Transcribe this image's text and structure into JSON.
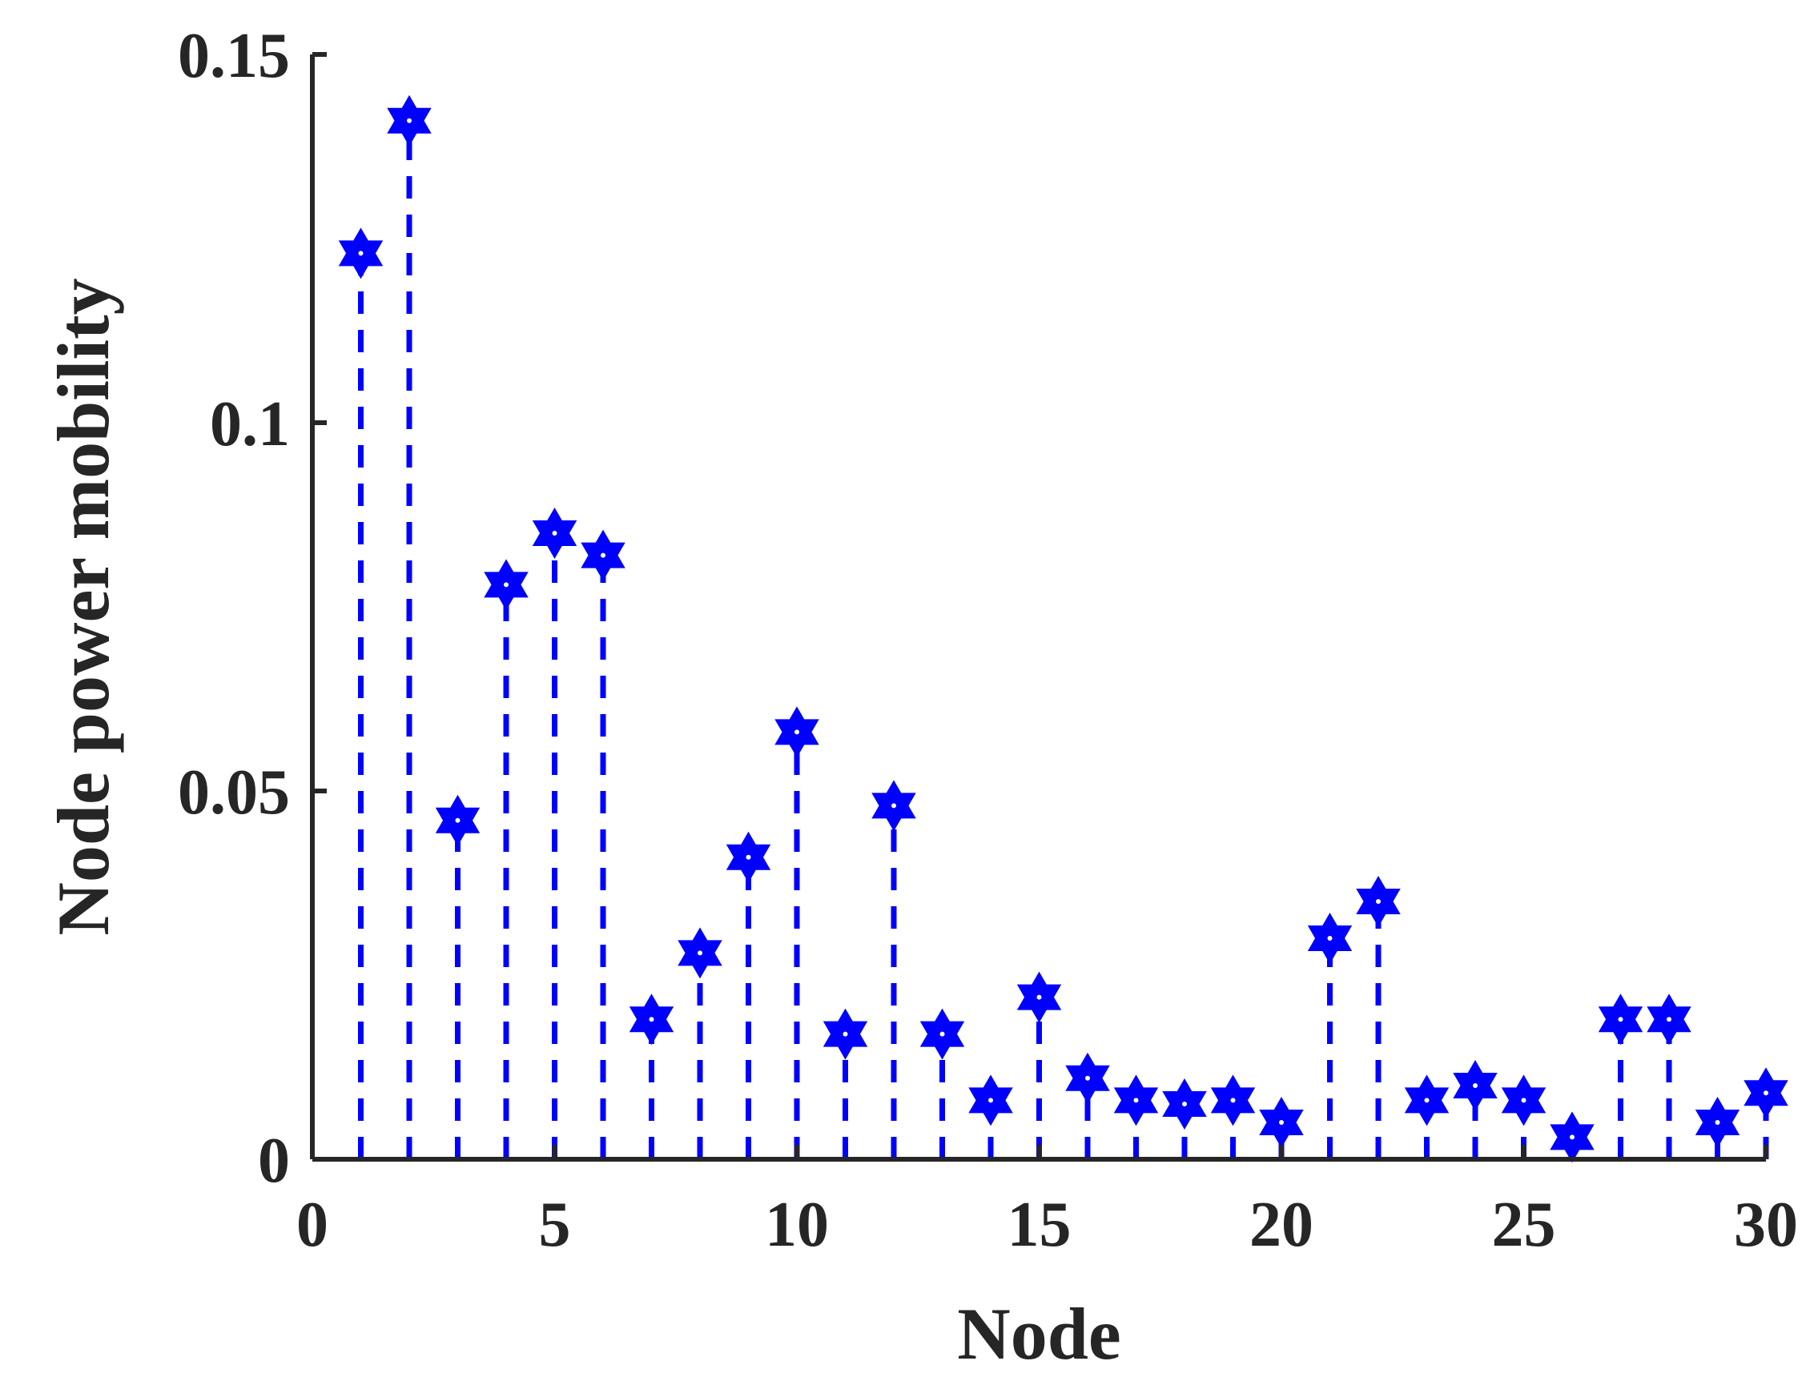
{
  "chart_data": {
    "type": "stem",
    "title": "",
    "xlabel": "Node",
    "ylabel": "Node power mobility",
    "xlim": [
      0,
      30
    ],
    "ylim": [
      0,
      0.15
    ],
    "x_ticks": [
      0,
      5,
      10,
      15,
      20,
      25,
      30
    ],
    "y_ticks": [
      0,
      0.05,
      0.1,
      0.15
    ],
    "y_tick_labels": [
      "0",
      "0.05",
      "0.1",
      "0.15"
    ],
    "grid": false,
    "marker": "hexagram",
    "line_style": "dashed",
    "color": "#0000ff",
    "x": [
      1,
      2,
      3,
      4,
      5,
      6,
      7,
      8,
      9,
      10,
      11,
      12,
      13,
      14,
      15,
      16,
      17,
      18,
      19,
      20,
      21,
      22,
      23,
      24,
      25,
      26,
      27,
      28,
      29,
      30
    ],
    "values": [
      0.123,
      0.141,
      0.046,
      0.078,
      0.085,
      0.082,
      0.019,
      0.028,
      0.041,
      0.058,
      0.017,
      0.048,
      0.017,
      0.008,
      0.022,
      0.011,
      0.008,
      0.0075,
      0.008,
      0.005,
      0.03,
      0.035,
      0.008,
      0.01,
      0.008,
      0.003,
      0.019,
      0.019,
      0.005,
      0.009
    ]
  }
}
